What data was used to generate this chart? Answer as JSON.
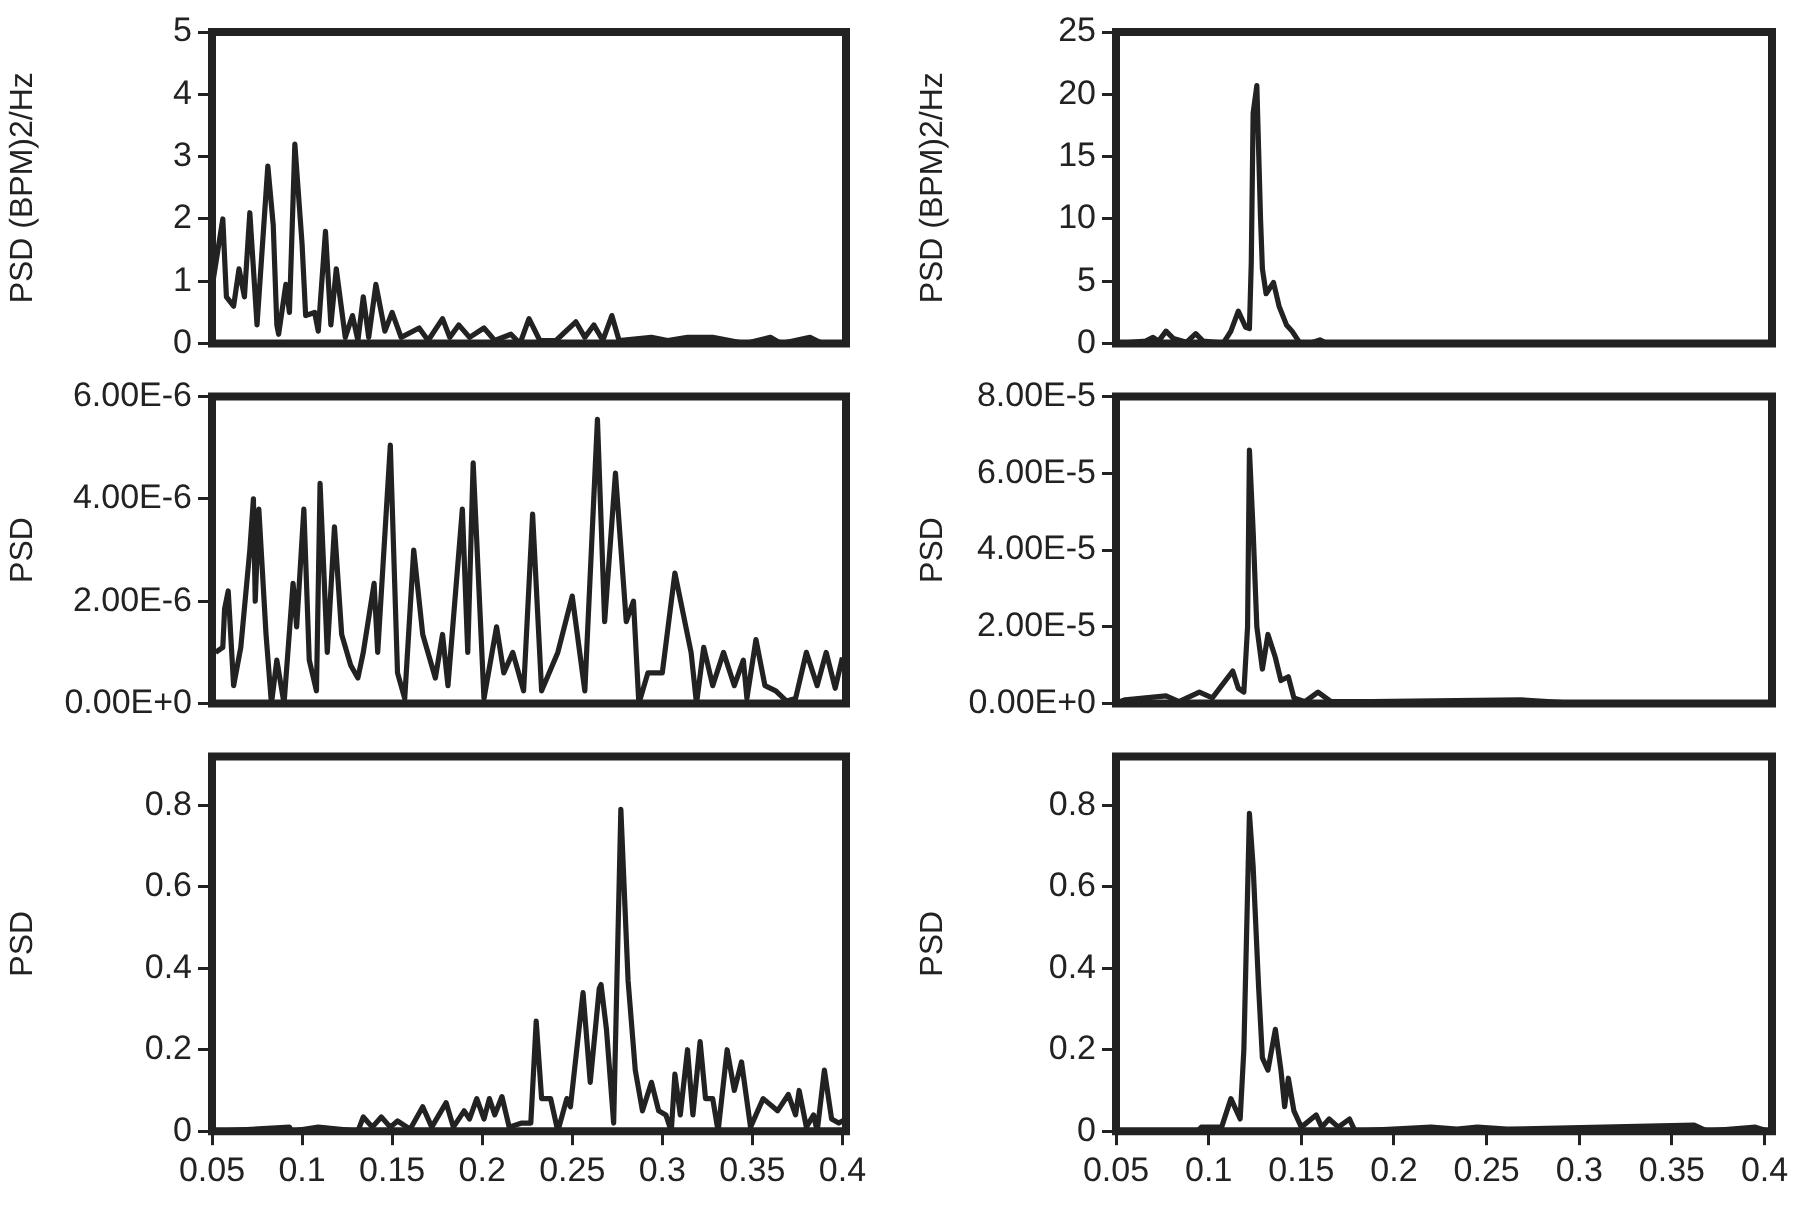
{
  "chart_data": [
    {
      "type": "line",
      "ylabel": "PSD (BPM)2/Hz",
      "xlim": [
        0.05,
        0.402
      ],
      "ylim": [
        0,
        5
      ],
      "yticks": [
        0,
        1,
        2,
        3,
        4,
        5
      ],
      "tick_labels": "y",
      "marker": "none",
      "x": [
        0.05,
        0.056,
        0.058,
        0.062,
        0.065,
        0.068,
        0.071,
        0.075,
        0.081,
        0.084,
        0.086,
        0.087,
        0.091,
        0.093,
        0.096,
        0.1,
        0.102,
        0.107,
        0.109,
        0.113,
        0.116,
        0.119,
        0.124,
        0.128,
        0.131,
        0.134,
        0.137,
        0.141,
        0.146,
        0.15,
        0.155,
        0.165,
        0.17,
        0.178,
        0.182,
        0.187,
        0.193,
        0.201,
        0.207,
        0.216,
        0.221,
        0.226,
        0.232,
        0.241,
        0.252,
        0.257,
        0.262,
        0.267,
        0.272,
        0.276,
        0.294,
        0.303,
        0.314,
        0.328,
        0.346,
        0.36,
        0.366,
        0.382,
        0.389,
        0.4
      ],
      "series": [
        {
          "color": "#222222",
          "values": [
            0.9,
            2.0,
            0.75,
            0.6,
            1.2,
            0.75,
            2.1,
            0.3,
            2.85,
            1.9,
            0.3,
            0.15,
            0.95,
            0.5,
            3.2,
            1.6,
            0.45,
            0.5,
            0.2,
            1.8,
            0.3,
            1.2,
            0.1,
            0.45,
            0.05,
            0.75,
            0.1,
            0.95,
            0.2,
            0.5,
            0.1,
            0.25,
            0.05,
            0.4,
            0.1,
            0.3,
            0.1,
            0.25,
            0.05,
            0.15,
            0,
            0.4,
            0.05,
            0.05,
            0.35,
            0.1,
            0.3,
            0.05,
            0.45,
            0.05,
            0.1,
            0.05,
            0.1,
            0.1,
            0,
            0.1,
            0,
            0.1,
            0,
            0
          ]
        }
      ]
    },
    {
      "type": "line",
      "ylabel": "PSD (BPM)2/Hz",
      "xlim": [
        0.05,
        0.404
      ],
      "ylim": [
        0,
        25
      ],
      "yticks": [
        0,
        5,
        10,
        15,
        20,
        25
      ],
      "tick_labels": "y",
      "marker": "none",
      "x": [
        0.05,
        0.066,
        0.07,
        0.073,
        0.077,
        0.081,
        0.088,
        0.093,
        0.097,
        0.108,
        0.112,
        0.116,
        0.12,
        0.122,
        0.123,
        0.124,
        0.126,
        0.128,
        0.129,
        0.131,
        0.135,
        0.138,
        0.142,
        0.145,
        0.149,
        0.154,
        0.16,
        0.164,
        0.2,
        0.3,
        0.4
      ],
      "series": [
        {
          "color": "#222222",
          "values": [
            0,
            0.2,
            0.5,
            0.2,
            1.0,
            0.4,
            0.1,
            0.8,
            0.2,
            0.05,
            1.0,
            2.6,
            1.3,
            1.2,
            6.5,
            18.5,
            20.7,
            10,
            6,
            4.0,
            4.9,
            3.0,
            1.5,
            1.0,
            0.1,
            0,
            0.3,
            0,
            0,
            0,
            0
          ]
        }
      ]
    },
    {
      "type": "line",
      "ylabel": "PSD",
      "xlim": [
        0.05,
        0.402
      ],
      "ylim": [
        0,
        6e-06
      ],
      "yticks": [
        {
          "value": 0,
          "label": "0.00E+0"
        },
        {
          "value": 2e-06,
          "label": "2.00E-6"
        },
        {
          "value": 4e-06,
          "label": "4.00E-6"
        },
        {
          "value": 6e-06,
          "label": "6.00E-6"
        }
      ],
      "tick_labels": "y",
      "marker": "none",
      "x": [
        0.052,
        0.056,
        0.057,
        0.059,
        0.062,
        0.066,
        0.071,
        0.073,
        0.074,
        0.076,
        0.08,
        0.083,
        0.086,
        0.09,
        0.095,
        0.097,
        0.101,
        0.104,
        0.108,
        0.11,
        0.114,
        0.118,
        0.122,
        0.127,
        0.131,
        0.134,
        0.14,
        0.142,
        0.149,
        0.153,
        0.157,
        0.162,
        0.167,
        0.174,
        0.178,
        0.181,
        0.189,
        0.192,
        0.195,
        0.201,
        0.208,
        0.212,
        0.217,
        0.223,
        0.228,
        0.233,
        0.242,
        0.25,
        0.257,
        0.264,
        0.268,
        0.274,
        0.28,
        0.284,
        0.287,
        0.292,
        0.3,
        0.307,
        0.316,
        0.319,
        0.323,
        0.328,
        0.334,
        0.34,
        0.345,
        0.347,
        0.352,
        0.357,
        0.363,
        0.369,
        0.374,
        0.38,
        0.386,
        0.391,
        0.396,
        0.4
      ],
      "series": [
        {
          "color": "#222222",
          "values": [
            1e-06,
            1.1e-06,
            1.85e-06,
            2.2e-06,
            3.5e-07,
            1.1e-06,
            3e-06,
            4e-06,
            2e-06,
            3.8e-06,
            1.35e-06,
            0,
            8.5e-07,
            0,
            2.35e-06,
            1.5e-06,
            3.8e-06,
            8.5e-07,
            2.5e-07,
            4.3e-06,
            1e-06,
            3.45e-06,
            1.35e-06,
            7.5e-07,
            5e-07,
            1e-06,
            2.35e-06,
            1e-06,
            5.05e-06,
            6e-07,
            1e-07,
            3e-06,
            1.35e-06,
            5e-07,
            1.35e-06,
            3.5e-07,
            3.8e-06,
            1e-06,
            4.7e-06,
            1e-07,
            1.5e-06,
            6e-07,
            1e-06,
            2.5e-07,
            3.7e-06,
            2.5e-07,
            1e-06,
            2.1e-06,
            2.5e-07,
            5.55e-06,
            1.6e-06,
            4.5e-06,
            1.6e-06,
            2e-06,
            0,
            6e-07,
            6e-07,
            2.55e-06,
            1e-06,
            0,
            1.1e-06,
            3.5e-07,
            1e-06,
            3.5e-07,
            8.5e-07,
            1e-07,
            1.25e-06,
            3.5e-07,
            2.5e-07,
            5e-08,
            1e-07,
            1e-06,
            3.5e-07,
            1e-06,
            3e-07,
            9e-07
          ]
        }
      ]
    },
    {
      "type": "line",
      "ylabel": "PSD",
      "xlim": [
        0.05,
        0.404
      ],
      "ylim": [
        0,
        8e-05
      ],
      "yticks": [
        {
          "value": 0,
          "label": "0.00E+0"
        },
        {
          "value": 2e-05,
          "label": "2.00E-5"
        },
        {
          "value": 4e-05,
          "label": "4.00E-5"
        },
        {
          "value": 6e-05,
          "label": "6.00E-5"
        },
        {
          "value": 8e-05,
          "label": "8.00E-5"
        }
      ],
      "tick_labels": "y",
      "marker": "none",
      "x": [
        0.052,
        0.055,
        0.066,
        0.077,
        0.084,
        0.095,
        0.102,
        0.113,
        0.116,
        0.119,
        0.121,
        0.122,
        0.124,
        0.126,
        0.129,
        0.132,
        0.136,
        0.139,
        0.143,
        0.146,
        0.152,
        0.159,
        0.166,
        0.188,
        0.268,
        0.3,
        0.4
      ],
      "series": [
        {
          "color": "#222222",
          "values": [
            5e-07,
            1e-06,
            1.5e-06,
            2e-06,
            5e-07,
            3e-06,
            1.5e-06,
            8.5e-06,
            4e-06,
            3e-06,
            2e-05,
            6.6e-05,
            4.5e-05,
            2e-05,
            9e-06,
            1.8e-05,
            1.2e-05,
            6e-06,
            7e-06,
            1.5e-06,
            5e-07,
            3e-06,
            5e-07,
            5e-07,
            1e-06,
            0,
            0
          ]
        }
      ]
    },
    {
      "type": "line",
      "ylabel": "PSD",
      "xlim": [
        0.05,
        0.402
      ],
      "ylim": [
        0,
        0.92
      ],
      "xticks": [
        0.05,
        0.1,
        0.15,
        0.2,
        0.25,
        0.3,
        0.35,
        0.4
      ],
      "yticks": [
        0,
        0.2,
        0.4,
        0.6,
        0.8
      ],
      "marker": "none",
      "x": [
        0.053,
        0.093,
        0.094,
        0.109,
        0.131,
        0.134,
        0.139,
        0.144,
        0.149,
        0.153,
        0.16,
        0.167,
        0.172,
        0.18,
        0.184,
        0.19,
        0.193,
        0.197,
        0.201,
        0.204,
        0.207,
        0.211,
        0.215,
        0.222,
        0.227,
        0.23,
        0.233,
        0.238,
        0.242,
        0.247,
        0.249,
        0.256,
        0.26,
        0.265,
        0.266,
        0.269,
        0.273,
        0.277,
        0.281,
        0.285,
        0.289,
        0.294,
        0.298,
        0.302,
        0.305,
        0.307,
        0.31,
        0.314,
        0.317,
        0.321,
        0.324,
        0.328,
        0.331,
        0.336,
        0.34,
        0.344,
        0.349,
        0.356,
        0.364,
        0.37,
        0.374,
        0.376,
        0.38,
        0.384,
        0.386,
        0.39,
        0.394,
        0.398,
        0.402
      ],
      "series": [
        {
          "color": "#222222",
          "values": [
            0,
            0.01,
            0,
            0.01,
            0,
            0.035,
            0.01,
            0.035,
            0.01,
            0.025,
            0.005,
            0.06,
            0.01,
            0.07,
            0.01,
            0.05,
            0.03,
            0.08,
            0.03,
            0.08,
            0.04,
            0.085,
            0.01,
            0.02,
            0.02,
            0.27,
            0.08,
            0.08,
            0,
            0.08,
            0.06,
            0.34,
            0.12,
            0.35,
            0.36,
            0.25,
            0.02,
            0.79,
            0.37,
            0.15,
            0.05,
            0.12,
            0.05,
            0.04,
            0,
            0.14,
            0.04,
            0.2,
            0.04,
            0.22,
            0.08,
            0.08,
            0,
            0.2,
            0.1,
            0.17,
            0.01,
            0.08,
            0.05,
            0.09,
            0.04,
            0.1,
            0.01,
            0.04,
            0,
            0.15,
            0.03,
            0.02,
            0.03
          ]
        }
      ]
    },
    {
      "type": "line",
      "ylabel": "PSD",
      "xlim": [
        0.05,
        0.404
      ],
      "ylim": [
        0,
        0.92
      ],
      "xticks": [
        0.05,
        0.1,
        0.15,
        0.2,
        0.25,
        0.3,
        0.35,
        0.4
      ],
      "yticks": [
        0,
        0.2,
        0.4,
        0.6,
        0.8
      ],
      "marker": "none",
      "x": [
        0.052,
        0.094,
        0.096,
        0.107,
        0.112,
        0.117,
        0.119,
        0.122,
        0.124,
        0.127,
        0.129,
        0.132,
        0.136,
        0.139,
        0.141,
        0.143,
        0.146,
        0.15,
        0.158,
        0.161,
        0.165,
        0.17,
        0.176,
        0.179,
        0.22,
        0.234,
        0.245,
        0.261,
        0.362,
        0.369,
        0.395,
        0.402
      ],
      "series": [
        {
          "color": "#222222",
          "values": [
            0,
            0,
            0.01,
            0.01,
            0.08,
            0.03,
            0.2,
            0.78,
            0.65,
            0.35,
            0.18,
            0.15,
            0.25,
            0.15,
            0.06,
            0.13,
            0.05,
            0.01,
            0.04,
            0.01,
            0.03,
            0.01,
            0.03,
            0,
            0.01,
            0.005,
            0.01,
            0.005,
            0.015,
            0,
            0.01,
            0
          ]
        }
      ]
    }
  ]
}
